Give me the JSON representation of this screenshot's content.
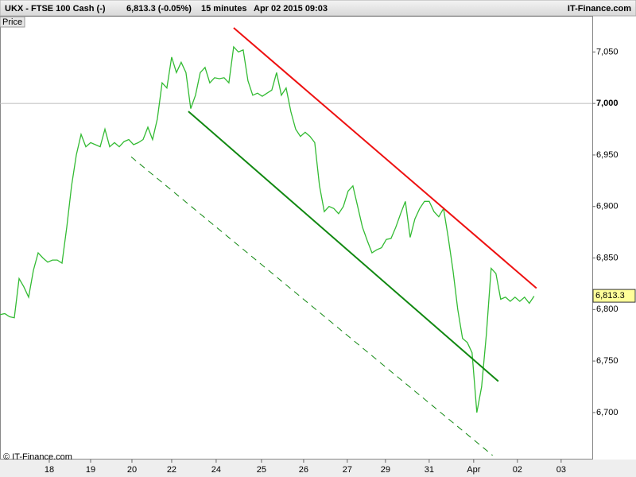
{
  "header": {
    "symbol": "UKX - FTSE 100 Cash (-)",
    "last": "6,813.3 (-0.05%)",
    "interval": "15 minutes",
    "timestamp": "Apr 02 2015 09:03",
    "brand": "IT-Finance.com"
  },
  "panel_label": "Price",
  "footer": "© IT-Finance.com",
  "chart_data": {
    "type": "line",
    "x": [
      0,
      1,
      2,
      3,
      4,
      5,
      6,
      7,
      8,
      9,
      10,
      11,
      12,
      13,
      14,
      15,
      16,
      17,
      18,
      19,
      20,
      21,
      22,
      23,
      24,
      25,
      26,
      27,
      28,
      29,
      30,
      31,
      32,
      33,
      34,
      35,
      36,
      37,
      38,
      39,
      40,
      41,
      42,
      43,
      44,
      45,
      46,
      47,
      48,
      49,
      50,
      51,
      52,
      53,
      54,
      55,
      56,
      57,
      58,
      59,
      60,
      61,
      62,
      63,
      64,
      65,
      66,
      67,
      68,
      69,
      70,
      71,
      72,
      73,
      74,
      75,
      76,
      77,
      78,
      79,
      80,
      81,
      82,
      83,
      84,
      85,
      86,
      87,
      88,
      89,
      90,
      91,
      92,
      93,
      94,
      95,
      96,
      97,
      98,
      99,
      100,
      101,
      102,
      103,
      104,
      105,
      106,
      107,
      108,
      109,
      110,
      111,
      112
    ],
    "series": [
      {
        "name": "Price",
        "color": "#33bb33",
        "values": [
          6795,
          6796,
          6793,
          6792,
          6830,
          6822,
          6812,
          6838,
          6855,
          6850,
          6846,
          6848,
          6848,
          6845,
          6880,
          6920,
          6950,
          6970,
          6958,
          6962,
          6960,
          6958,
          6975,
          6958,
          6962,
          6958,
          6963,
          6965,
          6960,
          6962,
          6965,
          6977,
          6965,
          6985,
          7020,
          7015,
          7045,
          7030,
          7040,
          7030,
          6995,
          7008,
          7030,
          7035,
          7020,
          7025,
          7024,
          7025,
          7020,
          7055,
          7050,
          7052,
          7022,
          7008,
          7010,
          7007,
          7010,
          7013,
          7030,
          7008,
          7015,
          6992,
          6975,
          6968,
          6972,
          6968,
          6962,
          6920,
          6895,
          6900,
          6898,
          6893,
          6900,
          6915,
          6920,
          6900,
          6880,
          6867,
          6855,
          6858,
          6860,
          6868,
          6869,
          6880,
          6893,
          6905,
          6870,
          6888,
          6898,
          6905,
          6905,
          6895,
          6890,
          6898,
          6870,
          6838,
          6800,
          6772,
          6768,
          6758,
          6700,
          6725,
          6776,
          6840,
          6835,
          6810,
          6812,
          6808,
          6812,
          6808,
          6812,
          6806,
          6813
        ]
      }
    ],
    "trendlines": [
      {
        "color": "#ee1111",
        "dashed": false,
        "x": [
          49,
          112.5
        ],
        "values": [
          7073.4,
          6820.7
        ]
      },
      {
        "color": "#118811",
        "dashed": false,
        "x": [
          39.5,
          104.5
        ],
        "values": [
          6992.3,
          6730.3
        ]
      },
      {
        "color": "#118811",
        "dashed": true,
        "x": [
          27.5,
          103.3
        ],
        "values": [
          6948.2,
          6658.4
        ]
      }
    ],
    "last_price": {
      "value": 6813.3,
      "label": "6,813.3"
    },
    "xlim": [
      0,
      124.2
    ],
    "xticks": [
      {
        "value": 10.33,
        "label": "18"
      },
      {
        "value": 19,
        "label": "19"
      },
      {
        "value": 27.67,
        "label": "20"
      },
      {
        "value": 36,
        "label": "22"
      },
      {
        "value": 45.33,
        "label": "24"
      },
      {
        "value": 54.83,
        "label": "25"
      },
      {
        "value": 63.67,
        "label": "26"
      },
      {
        "value": 72.83,
        "label": "27"
      },
      {
        "value": 80.83,
        "label": "29"
      },
      {
        "value": 90,
        "label": "31"
      },
      {
        "value": 99.33,
        "label": "Apr"
      },
      {
        "value": 108.5,
        "label": "02"
      },
      {
        "value": 117.67,
        "label": "03"
      }
    ],
    "ylim": [
      6654.4,
      7085
    ],
    "yticks": [
      {
        "value": 6700,
        "label": "6,700"
      },
      {
        "value": 6750,
        "label": "6,750"
      },
      {
        "value": 6800,
        "label": "6,800"
      },
      {
        "value": 6850,
        "label": "6,850"
      },
      {
        "value": 6900,
        "label": "6,900"
      },
      {
        "value": 6950,
        "label": "6,950"
      },
      {
        "value": 7000,
        "label": "7,000"
      },
      {
        "value": 7050,
        "label": "7,050"
      }
    ],
    "emphasized_ytick": 7000,
    "grid": false
  }
}
